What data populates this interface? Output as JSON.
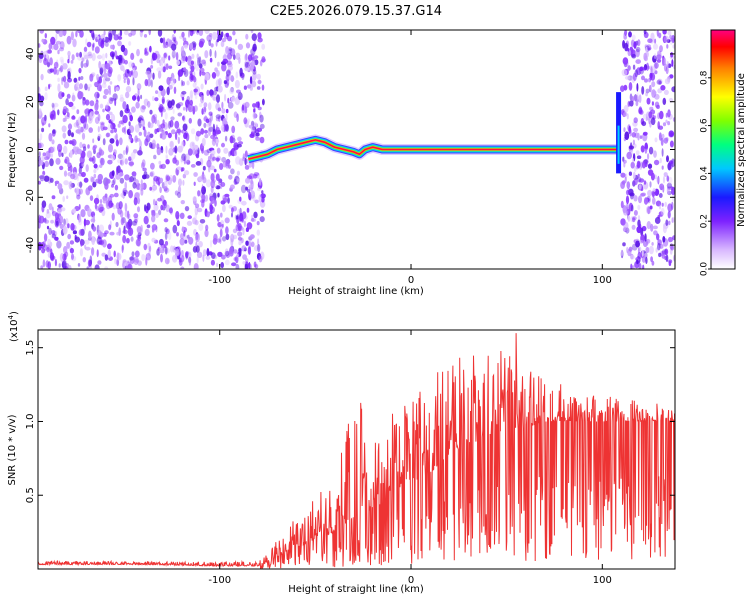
{
  "chart_data": [
    {
      "type": "heatmap",
      "title": "C2E5.2026.079.15.37.G14",
      "xlabel": "Height of straight line (km)",
      "ylabel": "Frequency (Hz)",
      "xlim": [
        -195,
        138
      ],
      "ylim": [
        -50,
        50
      ],
      "xticks": [
        -100,
        0,
        100
      ],
      "yticks": [
        -40,
        -20,
        0,
        20,
        40
      ],
      "noise_band_left_km": [
        -195,
        -77
      ],
      "noise_band_right_km": [
        110,
        138
      ],
      "ridge": {
        "x": [
          -85,
          -80,
          -75,
          -70,
          -65,
          -60,
          -55,
          -50,
          -45,
          -40,
          -35,
          -30,
          -27,
          -24,
          -20,
          -15,
          -10,
          0,
          20,
          40,
          60,
          80,
          100,
          108
        ],
        "y": [
          -4,
          -3,
          -2,
          0,
          1,
          2,
          3,
          4,
          3,
          1,
          0,
          -1,
          -2,
          0,
          1,
          0,
          0,
          0,
          0,
          0,
          0,
          0,
          0,
          0
        ]
      },
      "colorbar": {
        "label": "Normalized spectral amplitude",
        "range": [
          0,
          1
        ],
        "ticks": [
          "0.0",
          "0.2",
          "0.4",
          "0.6",
          "0.8"
        ]
      }
    },
    {
      "type": "line",
      "xlabel": "Height of straight line (km)",
      "ylabel": "SNR (10 * v/v)",
      "y_multiplier": "(x10",
      "y_multiplier_exp": "4",
      "xlim": [
        -195,
        138
      ],
      "ylim": [
        0,
        1.62
      ],
      "xticks": [
        -100,
        0,
        100
      ],
      "yticks": [
        "0.5",
        "1.0",
        "1.5"
      ],
      "color": "#ee3333",
      "envelope": {
        "x": [
          -195,
          -140,
          -100,
          -80,
          -75,
          -70,
          -65,
          -60,
          -50,
          -40,
          -30,
          -20,
          -10,
          0,
          10,
          20,
          30,
          40,
          50,
          55,
          60,
          70,
          80,
          90,
          100,
          110,
          120,
          130,
          138
        ],
        "base": [
          0.03,
          0.03,
          0.02,
          0.02,
          0.04,
          0.08,
          0.12,
          0.15,
          0.2,
          0.25,
          0.35,
          0.4,
          0.5,
          0.58,
          0.65,
          0.78,
          0.82,
          0.9,
          0.95,
          0.95,
          0.95,
          1.0,
          1.0,
          1.0,
          1.0,
          1.0,
          1.0,
          1.0,
          1.0
        ],
        "peak": [
          0.06,
          0.05,
          0.05,
          0.05,
          0.1,
          0.2,
          0.28,
          0.35,
          0.5,
          0.6,
          1.2,
          1.0,
          1.1,
          1.15,
          1.3,
          1.48,
          1.45,
          1.45,
          1.5,
          1.6,
          1.4,
          1.3,
          1.25,
          1.2,
          1.18,
          1.15,
          1.15,
          1.12,
          1.1
        ]
      }
    }
  ]
}
